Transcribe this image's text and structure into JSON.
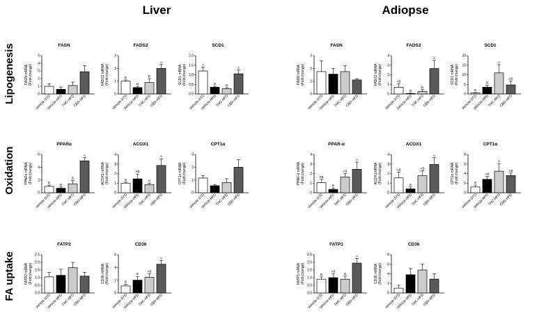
{
  "sections": {
    "liver": "Liver",
    "adipose": "Adiopse"
  },
  "rows": {
    "lipogenesis": "Lipogenesis",
    "oxidation": "Oxidation",
    "fa_uptake": "FA uptake"
  },
  "categories": [
    "Vehicle-STD",
    "Vehicle-HFD",
    "THC-HFD",
    "CBD-HFD"
  ],
  "colors": {
    "bar_fills": [
      "#ffffff",
      "#000000",
      "#cccccc",
      "#5a5a5a"
    ],
    "stroke": "#000000"
  },
  "chart_data": [
    {
      "type": "bar",
      "section": "liver",
      "row": "lipogenesis",
      "title": "FASN",
      "ylabel": [
        "FASN mRNA",
        "(Fold change)"
      ],
      "ylim": [
        0,
        5
      ],
      "yticks": [
        0,
        1,
        2,
        3,
        4,
        5
      ],
      "values": [
        1.0,
        0.6,
        1.1,
        2.9
      ],
      "errors": [
        0.35,
        0.3,
        0.45,
        0.8
      ],
      "letters": [
        "",
        "",
        "",
        ""
      ]
    },
    {
      "type": "bar",
      "section": "liver",
      "row": "lipogenesis",
      "title": "FADS2",
      "ylabel": [
        "FADS2 mRNA",
        "(Fold change)"
      ],
      "ylim": [
        0,
        3
      ],
      "yticks": [
        0,
        1,
        2,
        3
      ],
      "values": [
        1.0,
        0.5,
        0.9,
        2.0
      ],
      "errors": [
        0.1,
        0.1,
        0.3,
        0.3
      ],
      "letters": [
        "B",
        "B",
        "B",
        "A"
      ]
    },
    {
      "type": "bar",
      "section": "liver",
      "row": "lipogenesis",
      "title": "SCD1",
      "ylabel": [
        "SCD1 mRNA",
        "(Fold change)"
      ],
      "ylim": [
        0,
        2.0
      ],
      "yticks": [
        0.0,
        0.5,
        1.0,
        1.5,
        2.0
      ],
      "values": [
        1.2,
        0.35,
        0.28,
        1.05
      ],
      "errors": [
        0.2,
        0.05,
        0.05,
        0.2
      ],
      "letters": [
        "A",
        "B",
        "B",
        "A"
      ]
    },
    {
      "type": "bar",
      "section": "adipose",
      "row": "lipogenesis",
      "title": "FASN",
      "ylabel": [
        "FASN mRNA",
        "(Fold change)"
      ],
      "ylim": [
        0,
        3
      ],
      "yticks": [
        0,
        1,
        2,
        3
      ],
      "values": [
        1.75,
        1.55,
        1.75,
        1.1
      ],
      "errors": [
        0.85,
        0.45,
        0.45,
        0.1
      ],
      "letters": [
        "",
        "",
        "",
        ""
      ]
    },
    {
      "type": "bar",
      "section": "adipose",
      "row": "lipogenesis",
      "title": "FADS2",
      "ylabel": [
        "FADS2 mRNA",
        "(Fold change)"
      ],
      "ylim": [
        0,
        4
      ],
      "yticks": [
        0,
        1,
        2,
        3,
        4
      ],
      "values": [
        0.7,
        0.05,
        0.25,
        2.65
      ],
      "errors": [
        0.35,
        0.03,
        0.2,
        0.85
      ],
      "letters": [
        "AB",
        "B",
        "B",
        "A"
      ]
    },
    {
      "type": "bar",
      "section": "adipose",
      "row": "lipogenesis",
      "title": "SCD1",
      "ylabel": [
        "SCD1 mRNA",
        "(Fold change)"
      ],
      "ylim": [
        0,
        20
      ],
      "yticks": [
        0,
        5,
        10,
        15,
        20
      ],
      "values": [
        0.5,
        3.5,
        11.0,
        4.7
      ],
      "errors": [
        0.2,
        1.0,
        4.3,
        2.0
      ],
      "letters": [
        "B",
        "B",
        "A",
        "AB"
      ]
    },
    {
      "type": "bar",
      "section": "liver",
      "row": "oxidation",
      "title": "PPARα",
      "ylabel": [
        "PPARα mRNA",
        "(Fold change)"
      ],
      "ylim": [
        0,
        6
      ],
      "yticks": [
        0,
        2,
        4,
        6
      ],
      "values": [
        1.0,
        0.7,
        1.4,
        5.0
      ],
      "errors": [
        0.2,
        0.2,
        0.5,
        0.5
      ],
      "letters": [
        "B",
        "B",
        "B",
        "A"
      ]
    },
    {
      "type": "bar",
      "section": "liver",
      "row": "oxidation",
      "title": "ACOX1",
      "ylabel": [
        "ACOX1 mRNA",
        "(Fold change)"
      ],
      "ylim": [
        0,
        4
      ],
      "yticks": [
        0,
        1,
        2,
        3,
        4
      ],
      "values": [
        1.0,
        1.45,
        0.85,
        2.85
      ],
      "errors": [
        0.1,
        0.5,
        0.15,
        0.7
      ],
      "letters": [
        "B",
        "AB",
        "B",
        "A"
      ]
    },
    {
      "type": "bar",
      "section": "liver",
      "row": "oxidation",
      "title": "CPT1α",
      "ylabel": [
        "CPT1α mRNA",
        "(Fold change)"
      ],
      "ylim": [
        0,
        3
      ],
      "yticks": [
        0,
        1,
        2,
        3
      ],
      "values": [
        1.15,
        0.55,
        0.8,
        2.0
      ],
      "errors": [
        0.2,
        0.1,
        0.3,
        0.6
      ],
      "letters": [
        "",
        "",
        "",
        ""
      ]
    },
    {
      "type": "bar",
      "section": "adipose",
      "row": "oxidation",
      "title": "PPAR-α",
      "ylabel": [
        "PPAR-α mRNA",
        "(Fold change)"
      ],
      "ylim": [
        0,
        4
      ],
      "yticks": [
        0,
        1,
        2,
        3,
        4
      ],
      "values": [
        1.05,
        0.35,
        1.65,
        2.45
      ],
      "errors": [
        0.35,
        0.15,
        0.35,
        0.75
      ],
      "letters": [
        "AB",
        "B",
        "AB",
        "A"
      ]
    },
    {
      "type": "bar",
      "section": "adipose",
      "row": "oxidation",
      "title": "ACOX1",
      "ylabel": [
        "ACOX1mRNA",
        "(Fold change)"
      ],
      "ylim": [
        0,
        4
      ],
      "yticks": [
        0,
        1,
        2,
        3,
        4
      ],
      "values": [
        1.55,
        0.4,
        1.8,
        2.95
      ],
      "errors": [
        0.6,
        0.2,
        0.5,
        0.7
      ],
      "letters": [
        "AB",
        "B",
        "AB",
        "A"
      ]
    },
    {
      "type": "bar",
      "section": "adipose",
      "row": "oxidation",
      "title": "CPT1α",
      "ylabel": [
        "CPT1α mRNA",
        "(Fold change)"
      ],
      "ylim": [
        0,
        8
      ],
      "yticks": [
        0,
        2,
        4,
        6,
        8
      ],
      "values": [
        1.2,
        2.8,
        4.5,
        3.6
      ],
      "errors": [
        0.4,
        0.6,
        1.6,
        0.5
      ],
      "letters": [
        "B",
        "AB",
        "A",
        "AB"
      ]
    },
    {
      "type": "bar",
      "section": "liver",
      "row": "fa_uptake",
      "title": "FATP2",
      "ylabel": [
        "FATP2 mRNA",
        "(Fold change)"
      ],
      "ylim": [
        0,
        2.5
      ],
      "yticks": [
        0.0,
        0.5,
        1.0,
        1.5,
        2.0,
        2.5
      ],
      "values": [
        1.05,
        1.15,
        1.65,
        1.1
      ],
      "errors": [
        0.3,
        0.4,
        0.35,
        0.25
      ],
      "letters": [
        "",
        "",
        "",
        ""
      ]
    },
    {
      "type": "bar",
      "section": "liver",
      "row": "fa_uptake",
      "title": "CD36",
      "ylabel": [
        "CD36 mRNA",
        "(Fold change)"
      ],
      "ylim": [
        0,
        6
      ],
      "yticks": [
        0,
        2,
        4,
        6
      ],
      "values": [
        1.1,
        2.0,
        2.45,
        4.5
      ],
      "errors": [
        0.25,
        0.6,
        0.55,
        0.6
      ],
      "letters": [
        "B",
        "B",
        "AB",
        "A"
      ]
    },
    {
      "type": "bar",
      "section": "adipose",
      "row": "fa_uptake",
      "title": "FATP1",
      "ylabel": [
        "FATP1 mRNA",
        "(Fold change)"
      ],
      "ylim": [
        0,
        2.5
      ],
      "yticks": [
        0.0,
        0.5,
        1.0,
        1.5,
        2.0,
        2.5
      ],
      "values": [
        0.9,
        1.0,
        0.9,
        1.95
      ],
      "errors": [
        0.15,
        0.25,
        0.2,
        0.3
      ],
      "letters": [
        "B",
        "AB",
        "B",
        "A"
      ]
    },
    {
      "type": "bar",
      "section": "adipose",
      "row": "fa_uptake",
      "title": "CD36",
      "ylabel": [
        "CD36 mRNA",
        "(Fold change)"
      ],
      "ylim": [
        0,
        8
      ],
      "yticks": [
        0,
        2,
        4,
        6,
        8
      ],
      "values": [
        1.0,
        3.8,
        4.8,
        2.9
      ],
      "errors": [
        0.6,
        1.3,
        1.2,
        1.1
      ],
      "letters": [
        "",
        "",
        "",
        ""
      ]
    }
  ]
}
